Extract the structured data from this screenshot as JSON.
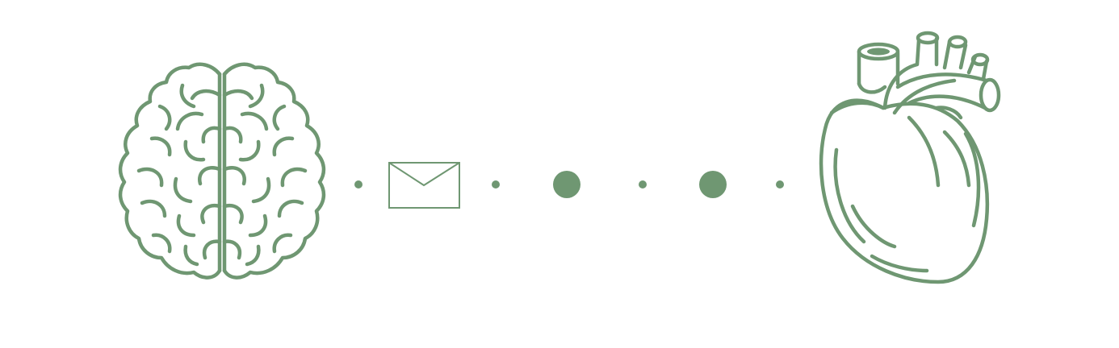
{
  "colors": {
    "primary": "#6f9772",
    "background": "#ffffff"
  },
  "illustration": {
    "left_icon": "brain-icon",
    "right_icon": "heart-icon",
    "connector": [
      "small-dot-icon",
      "envelope-icon",
      "small-dot-icon",
      "large-dot-icon",
      "small-dot-icon",
      "large-dot-icon",
      "small-dot-icon"
    ]
  }
}
